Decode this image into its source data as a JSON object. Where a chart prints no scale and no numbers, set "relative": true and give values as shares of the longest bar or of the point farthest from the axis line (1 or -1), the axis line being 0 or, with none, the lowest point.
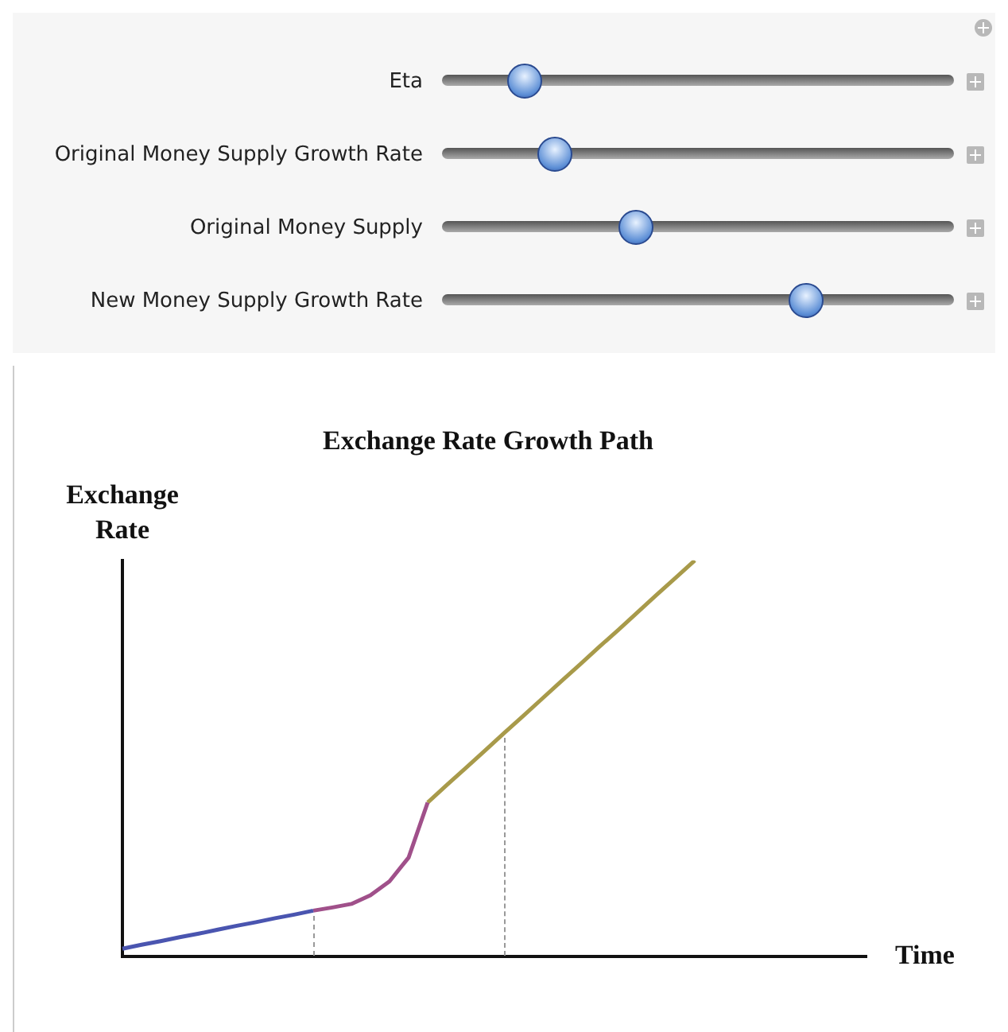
{
  "chart_data": {
    "type": "line",
    "title": "Exchange Rate Growth Path",
    "xlabel": "Time",
    "ylabel": "Exchange Rate",
    "relative": true,
    "grid": false,
    "legend": false,
    "annotations": [
      "Eta",
      "Original Money Supply Growth Rate",
      "Original Money Supply",
      "New Money Supply Growth Rate"
    ],
    "categories": [
      null,
      null,
      null,
      null,
      null,
      null,
      null,
      null,
      null,
      null,
      null,
      null,
      null,
      null,
      null,
      null,
      null,
      null,
      null,
      null,
      null,
      null,
      null,
      null,
      null,
      null,
      null,
      null,
      null,
      null,
      null,
      null,
      null,
      null,
      null,
      null,
      null,
      null,
      null,
      null
    ],
    "series": [
      {
        "color": "#4a55b0",
        "values": [
          0.02,
          0.03,
          0.039,
          0.049,
          0.058,
          0.068,
          0.078,
          0.087,
          0.097,
          0.106,
          0.116,
          null,
          null,
          null,
          null,
          null,
          null,
          null,
          null,
          null,
          null,
          null,
          null,
          null,
          null,
          null,
          null,
          null,
          null,
          null,
          null,
          null,
          null,
          null,
          null,
          null,
          null,
          null,
          null,
          null
        ]
      },
      {
        "color": "#a0508a",
        "values": [
          null,
          null,
          null,
          null,
          null,
          null,
          null,
          null,
          null,
          null,
          0.116,
          0.124,
          0.133,
          0.155,
          0.19,
          0.25,
          0.389,
          null,
          null,
          null,
          null,
          null,
          null,
          null,
          null,
          null,
          null,
          null,
          null,
          null,
          null,
          null,
          null,
          null,
          null,
          null,
          null,
          null,
          null,
          null
        ]
      },
      {
        "color": "#a89a4a",
        "values": [
          null,
          null,
          null,
          null,
          null,
          null,
          null,
          null,
          null,
          null,
          null,
          null,
          null,
          null,
          null,
          null,
          0.389,
          0.433,
          0.476,
          0.52,
          0.564,
          0.607,
          0.651,
          0.695,
          0.738,
          0.782,
          0.825,
          0.869,
          0.913,
          0.956,
          1.0,
          null,
          null,
          null,
          null,
          null,
          null,
          null,
          null,
          null
        ]
      }
    ]
  }
}
